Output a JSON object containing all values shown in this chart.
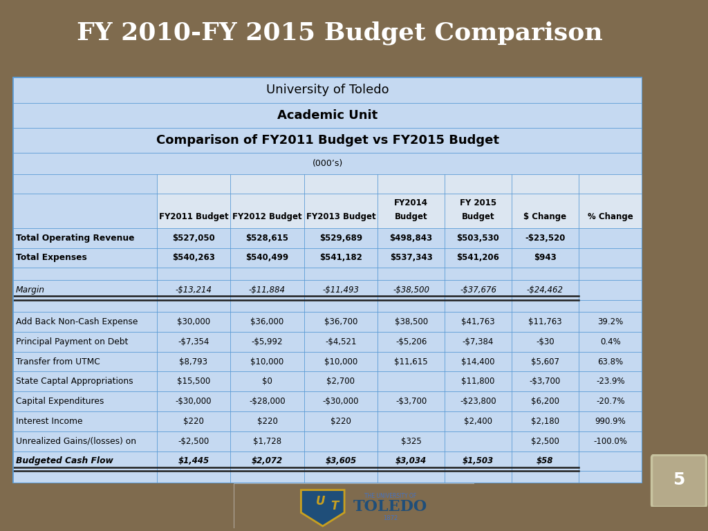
{
  "title": "FY 2010-FY 2015 Budget Comparison",
  "title_bg": "#1f4e79",
  "title_color": "#ffffff",
  "slide_bg": "#7f6b4e",
  "page_num_bg": "#b5aa8a",
  "table_bg": "#c5d9f1",
  "col_header_bg": "#dce6f1",
  "line_color": "#5b9bd5",
  "dark_line": "#1f1f1f",
  "header_lines": [
    {
      "text": "University of Toledo",
      "bold": false,
      "fontsize": 13
    },
    {
      "text": "Academic Unit",
      "bold": true,
      "fontsize": 13
    },
    {
      "text": "Comparison of FY2011 Budget vs FY2015 Budget",
      "bold": true,
      "fontsize": 13
    },
    {
      "text": "(000’s)",
      "bold": false,
      "fontsize": 9
    }
  ],
  "col_headers_line1": [
    "",
    "",
    "",
    "FY2014",
    "FY 2015",
    "",
    ""
  ],
  "col_headers_line2": [
    "FY2011 Budget",
    "FY2012 Budget",
    "FY2013 Budget",
    "Budget",
    "Budget",
    "$ Change",
    "% Change"
  ],
  "rows": [
    {
      "label": "Total Operating Revenue",
      "bold": true,
      "italic": false,
      "values": [
        "$527,050",
        "$528,615",
        "$529,689",
        "$498,843",
        "$503,530",
        "-$23,520",
        ""
      ],
      "double_border_below": false
    },
    {
      "label": "Total Expenses",
      "bold": true,
      "italic": false,
      "values": [
        "$540,263",
        "$540,499",
        "$541,182",
        "$537,343",
        "$541,206",
        "$943",
        ""
      ],
      "double_border_below": false
    },
    {
      "label": "",
      "bold": false,
      "italic": false,
      "values": [
        "",
        "",
        "",
        "",
        "",
        "",
        ""
      ],
      "double_border_below": false
    },
    {
      "label": "Margin",
      "bold": false,
      "italic": true,
      "values": [
        "-$13,214",
        "-$11,884",
        "-$11,493",
        "-$38,500",
        "-$37,676",
        "-$24,462",
        ""
      ],
      "double_border_below": true
    },
    {
      "label": "",
      "bold": false,
      "italic": false,
      "values": [
        "",
        "",
        "",
        "",
        "",
        "",
        ""
      ],
      "double_border_below": false
    },
    {
      "label": "Add Back Non-Cash Expense",
      "bold": false,
      "italic": false,
      "values": [
        "$30,000",
        "$36,000",
        "$36,700",
        "$38,500",
        "$41,763",
        "$11,763",
        "39.2%"
      ],
      "double_border_below": false
    },
    {
      "label": "Principal Payment on Debt",
      "bold": false,
      "italic": false,
      "values": [
        "-$7,354",
        "-$5,992",
        "-$4,521",
        "-$5,206",
        "-$7,384",
        "-$30",
        "0.4%"
      ],
      "double_border_below": false
    },
    {
      "label": "Transfer from UTMC",
      "bold": false,
      "italic": false,
      "values": [
        "$8,793",
        "$10,000",
        "$10,000",
        "$11,615",
        "$14,400",
        "$5,607",
        "63.8%"
      ],
      "double_border_below": false
    },
    {
      "label": "State Captal Appropriations",
      "bold": false,
      "italic": false,
      "values": [
        "$15,500",
        "$0",
        "$2,700",
        "",
        "$11,800",
        "-$3,700",
        "-23.9%"
      ],
      "double_border_below": false
    },
    {
      "label": "Capital Expenditures",
      "bold": false,
      "italic": false,
      "values": [
        "-$30,000",
        "-$28,000",
        "-$30,000",
        "-$3,700",
        "-$23,800",
        "$6,200",
        "-20.7%"
      ],
      "double_border_below": false
    },
    {
      "label": "Interest Income",
      "bold": false,
      "italic": false,
      "values": [
        "$220",
        "$220",
        "$220",
        "",
        "$2,400",
        "$2,180",
        "990.9%"
      ],
      "double_border_below": false
    },
    {
      "label": "Unrealized Gains/(losses) on",
      "bold": false,
      "italic": false,
      "values": [
        "-$2,500",
        "$1,728",
        "",
        "$325",
        "",
        "$2,500",
        "-100.0%"
      ],
      "double_border_below": false
    },
    {
      "label": "Budgeted Cash Flow",
      "bold": true,
      "italic": true,
      "values": [
        "$1,445",
        "$2,072",
        "$3,605",
        "$3,034",
        "$1,503",
        "$58",
        ""
      ],
      "double_border_below": true
    },
    {
      "label": "",
      "bold": false,
      "italic": false,
      "values": [
        "",
        "",
        "",
        "",
        "",
        "",
        ""
      ],
      "double_border_below": false
    }
  ],
  "page_number": "5"
}
